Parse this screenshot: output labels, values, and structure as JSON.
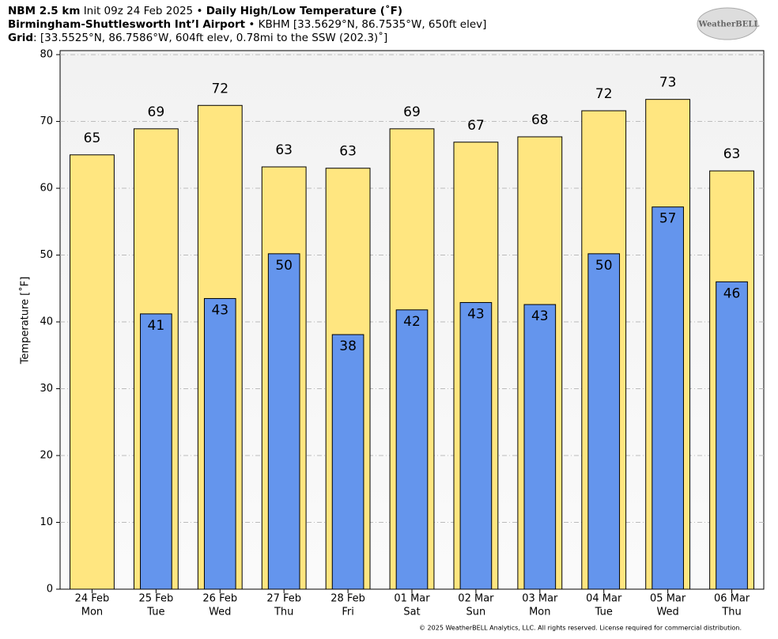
{
  "header": {
    "line1": [
      "NBM 2.5 km",
      "Init 09z 24 Feb 2025",
      "•",
      "Daily High/Low Temperature (˚F)"
    ],
    "line2": [
      "Birmingham-Shuttlesworth Int’l Airport",
      "•",
      "KBHM [33.5629°N, 86.7535°W, 650ft elev]"
    ],
    "line3": [
      "Grid",
      ": [33.5525°N, 86.7586°W, 604ft elev, 0.78mi to the SSW (202.3)˚]"
    ],
    "logo": "WeatherBELL"
  },
  "footer": "© 2025 WeatherBELL Analytics, LLC. All rights reserved. License required for commercial distribution.",
  "chart_data": {
    "type": "bar",
    "y_label": "Temperature [˚F]",
    "categories": [
      "24 Feb",
      "25 Feb",
      "26 Feb",
      "27 Feb",
      "28 Feb",
      "01 Mar",
      "02 Mar",
      "03 Mar",
      "04 Mar",
      "05 Mar",
      "06 Mar"
    ],
    "weekdays": [
      "Mon",
      "Tue",
      "Wed",
      "Thu",
      "Fri",
      "Sat",
      "Sun",
      "Mon",
      "Tue",
      "Wed",
      "Thu"
    ],
    "series": [
      {
        "color": "#ffe680",
        "values": [
          65.0,
          68.9,
          72.4,
          63.2,
          63.0,
          68.9,
          66.9,
          67.7,
          71.6,
          73.3,
          62.6
        ],
        "value_labels": [
          "65",
          "69",
          "72",
          "63",
          "63",
          "69",
          "67",
          "68",
          "72",
          "73",
          "63"
        ]
      },
      {
        "color": "#6495ed",
        "values": [
          null,
          41.2,
          43.5,
          50.2,
          38.1,
          41.8,
          42.9,
          42.6,
          50.2,
          57.2,
          46.0
        ],
        "value_labels": [
          null,
          "41",
          "43",
          "50",
          "38",
          "42",
          "43",
          "43",
          "50",
          "57",
          "46"
        ]
      }
    ],
    "ylim": [
      0,
      80.6
    ],
    "yticks": [
      0,
      10,
      20,
      30,
      40,
      50,
      60,
      70,
      80
    ],
    "grid": true
  }
}
